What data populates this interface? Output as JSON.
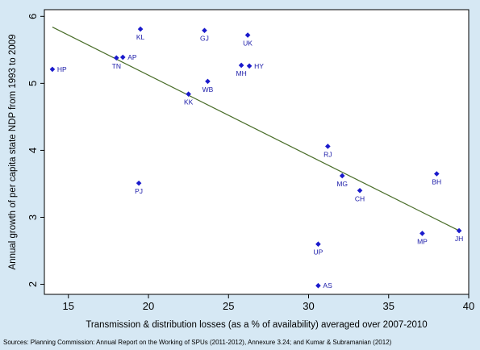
{
  "chart_data": {
    "type": "scatter",
    "title": "",
    "xlabel": "Transmission & distribution losses (as a % of availability) averaged over 2007-2010",
    "ylabel": "Annual growth of per capita state NDP from 1993 to 2009",
    "xlim": [
      13.5,
      40
    ],
    "ylim": [
      1.85,
      6.1
    ],
    "xticks": [
      15,
      20,
      25,
      30,
      35,
      40
    ],
    "yticks": [
      2,
      3,
      4,
      5,
      6
    ],
    "grid": false,
    "legend": "none",
    "points": [
      {
        "label": "HP",
        "x": 14.0,
        "y": 5.21
      },
      {
        "label": "TN",
        "x": 18.0,
        "y": 5.38
      },
      {
        "label": "AP",
        "x": 18.4,
        "y": 5.39
      },
      {
        "label": "KL",
        "x": 19.5,
        "y": 5.81
      },
      {
        "label": "PJ",
        "x": 19.4,
        "y": 3.51
      },
      {
        "label": "GJ",
        "x": 23.5,
        "y": 5.79
      },
      {
        "label": "KK",
        "x": 22.5,
        "y": 4.84
      },
      {
        "label": "WB",
        "x": 23.7,
        "y": 5.03
      },
      {
        "label": "UK",
        "x": 26.2,
        "y": 5.72
      },
      {
        "label": "MH",
        "x": 25.8,
        "y": 5.27
      },
      {
        "label": "HY",
        "x": 26.3,
        "y": 5.26
      },
      {
        "label": "RJ",
        "x": 31.2,
        "y": 4.06
      },
      {
        "label": "MG",
        "x": 32.1,
        "y": 3.62
      },
      {
        "label": "CH",
        "x": 33.2,
        "y": 3.4
      },
      {
        "label": "UP",
        "x": 30.6,
        "y": 2.6
      },
      {
        "label": "AS",
        "x": 30.6,
        "y": 1.98
      },
      {
        "label": "BH",
        "x": 38.0,
        "y": 3.65
      },
      {
        "label": "MP",
        "x": 37.1,
        "y": 2.76
      },
      {
        "label": "JH",
        "x": 39.4,
        "y": 2.8
      }
    ],
    "fit_line": {
      "x": [
        14.0,
        39.4
      ],
      "y": [
        5.84,
        2.8
      ]
    },
    "colors": {
      "marker": "#1a1acc",
      "fit_line": "#4a6e2a",
      "background": "#d6e8f4",
      "plot_background": "#ffffff"
    }
  },
  "source_note": "Sources: Planning Commission: Annual Report on the Working of SPUs (2011-2012), Annexure 3.24; and Kumar & Subramanian (2012)"
}
